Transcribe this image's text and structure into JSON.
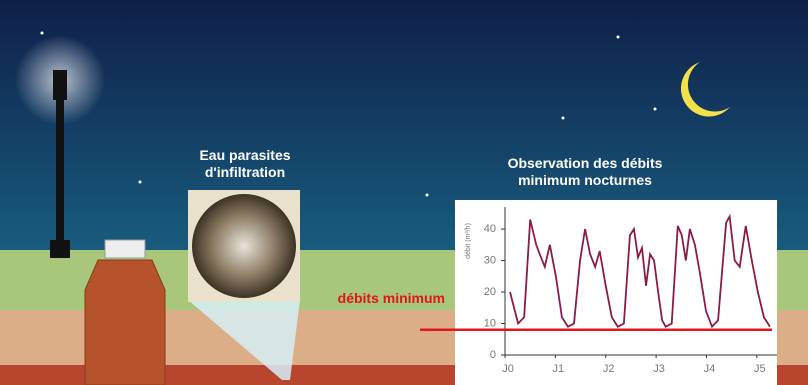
{
  "chart_data": {
    "type": "line",
    "title": "Observation des débits minimum nocturnes",
    "y_label": "débit (m³/h)",
    "annotations": [
      "Eau parasites d'infiltration"
    ],
    "reference_line": {
      "value": 8,
      "label": "débits minimum",
      "color": "#e0161c"
    },
    "xlim": [
      0,
      5.4
    ],
    "ylim": [
      0,
      47
    ],
    "xticks": [
      {
        "value": 0,
        "label": "J0"
      },
      {
        "value": 1,
        "label": "J1"
      },
      {
        "value": 2,
        "label": "J2"
      },
      {
        "value": 3,
        "label": "J3"
      },
      {
        "value": 4,
        "label": "J4"
      },
      {
        "value": 5,
        "label": "J5"
      }
    ],
    "yticks": [
      0,
      10,
      20,
      30,
      40
    ],
    "series": [
      {
        "color": "#8b1a4a",
        "x": [
          0.1,
          0.26,
          0.38,
          0.5,
          0.62,
          0.69,
          0.79,
          0.89,
          1.01,
          1.13,
          1.25,
          1.37,
          1.49,
          1.59,
          1.69,
          1.79,
          1.88,
          2.0,
          2.12,
          2.24,
          2.36,
          2.48,
          2.56,
          2.64,
          2.72,
          2.8,
          2.88,
          2.96,
          3.04,
          3.12,
          3.19,
          3.31,
          3.43,
          3.51,
          3.59,
          3.67,
          3.77,
          3.87,
          3.99,
          4.11,
          4.23,
          4.39,
          4.46,
          4.56,
          4.66,
          4.78,
          4.9,
          5.02,
          5.14,
          5.26
        ],
        "values": [
          20,
          10,
          12,
          43,
          35,
          32,
          28,
          35,
          25,
          12,
          9,
          10,
          30,
          40,
          32,
          28,
          33,
          22,
          12,
          9,
          10,
          38,
          40,
          31,
          34,
          22,
          32,
          30,
          20,
          11,
          9,
          10,
          41,
          38,
          30,
          40,
          35,
          26,
          14,
          9,
          11,
          42,
          44,
          30,
          28,
          41,
          30,
          20,
          12,
          9
        ]
      }
    ]
  }
}
